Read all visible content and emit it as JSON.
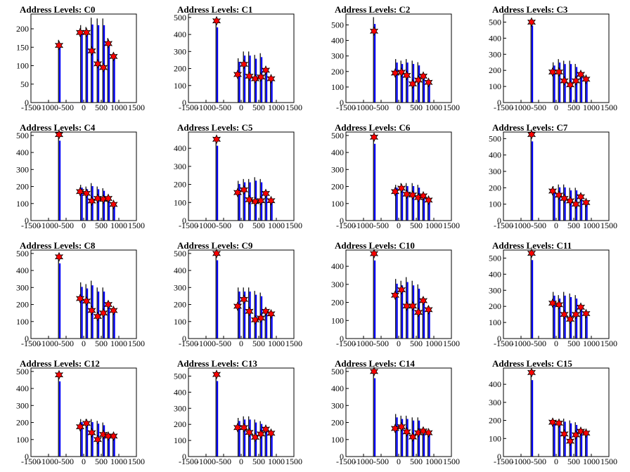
{
  "chart_data": [
    {
      "type": "bar",
      "title": "Address Levels: C0",
      "xlim": [
        -1500,
        1500
      ],
      "ylim": [
        0,
        240
      ],
      "yticks": [
        0,
        50,
        100,
        150,
        200
      ],
      "xticks": [
        -1500,
        -1000,
        -500,
        0,
        500,
        1000,
        1500
      ],
      "xticklabels": [
        "-1500",
        "-1000",
        "-500",
        "0",
        "500",
        "1000",
        "1500"
      ],
      "series": [
        {
          "x": [
            -700,
            -70,
            80,
            230,
            400,
            560,
            700,
            850
          ],
          "values": [
            170,
            210,
            205,
            230,
            228,
            228,
            175,
            135
          ]
        }
      ],
      "peaks": {
        "x": [
          -700,
          -100,
          80,
          230,
          400,
          560,
          700,
          850
        ],
        "values": [
          155,
          190,
          190,
          140,
          105,
          95,
          160,
          125
        ]
      }
    },
    {
      "type": "bar",
      "title": "Address Levels: C1",
      "xlim": [
        -1500,
        1500
      ],
      "ylim": [
        0,
        520
      ],
      "yticks": [
        0,
        100,
        200,
        300,
        400,
        500
      ],
      "xticks": [
        -1500,
        -1000,
        -500,
        0,
        500,
        1000,
        1500
      ],
      "xticklabels": [
        "-1500",
        "-1000",
        "-500",
        "0",
        "500",
        "1000",
        "1500"
      ],
      "series": [
        {
          "x": [
            -700,
            -70,
            80,
            230,
            400,
            560,
            700,
            850
          ],
          "values": [
            480,
            260,
            300,
            300,
            280,
            290,
            200,
            150
          ]
        }
      ],
      "peaks": {
        "x": [
          -700,
          -100,
          80,
          230,
          400,
          560,
          700,
          850
        ],
        "values": [
          480,
          165,
          225,
          155,
          140,
          150,
          190,
          140
        ]
      }
    },
    {
      "type": "bar",
      "title": "Address Levels: C2",
      "xlim": [
        -1500,
        1500
      ],
      "ylim": [
        0,
        570
      ],
      "yticks": [
        0,
        100,
        200,
        300,
        400,
        500
      ],
      "xticks": [
        -1500,
        -1000,
        -500,
        0,
        500,
        1000,
        1500
      ],
      "xticklabels": [
        "-1500",
        "-1000",
        "-500",
        "0",
        "500",
        "1000",
        "1500"
      ],
      "series": [
        {
          "x": [
            -700,
            -70,
            80,
            230,
            400,
            560,
            700,
            850
          ],
          "values": [
            550,
            280,
            270,
            280,
            270,
            260,
            180,
            130
          ]
        }
      ],
      "peaks": {
        "x": [
          -700,
          -100,
          80,
          230,
          400,
          560,
          700,
          850
        ],
        "values": [
          460,
          190,
          195,
          175,
          120,
          145,
          170,
          130
        ]
      }
    },
    {
      "type": "bar",
      "title": "Address Levels: C3",
      "xlim": [
        -1500,
        1500
      ],
      "ylim": [
        0,
        550
      ],
      "yticks": [
        0,
        100,
        200,
        300,
        400,
        500
      ],
      "xticks": [
        -1500,
        -1000,
        -500,
        0,
        500,
        1000,
        1500
      ],
      "xticklabels": [
        "-1500",
        "-1000",
        "-500",
        "0",
        "500",
        "1000",
        "1500"
      ],
      "series": [
        {
          "x": [
            -700,
            -70,
            80,
            230,
            400,
            560,
            700,
            850
          ],
          "values": [
            520,
            250,
            270,
            260,
            260,
            240,
            180,
            150
          ]
        }
      ],
      "peaks": {
        "x": [
          -700,
          -100,
          80,
          230,
          400,
          560,
          700,
          850
        ],
        "values": [
          500,
          190,
          190,
          135,
          110,
          135,
          175,
          145
        ]
      }
    },
    {
      "type": "bar",
      "title": "Address Levels: C4",
      "xlim": [
        -1500,
        1500
      ],
      "ylim": [
        0,
        520
      ],
      "yticks": [
        0,
        100,
        200,
        300,
        400,
        500
      ],
      "xticks": [
        -1500,
        -1000,
        -500,
        0,
        500,
        1000,
        1500
      ],
      "xticklabels": [
        "-1500",
        "-1000",
        "-500",
        "0",
        "500",
        "1000",
        "1500"
      ],
      "series": [
        {
          "x": [
            -700,
            -70,
            80,
            230,
            400,
            560,
            700,
            850
          ],
          "values": [
            510,
            210,
            200,
            220,
            200,
            190,
            140,
            100
          ]
        }
      ],
      "peaks": {
        "x": [
          -700,
          -100,
          80,
          230,
          400,
          560,
          700,
          850
        ],
        "values": [
          505,
          170,
          160,
          115,
          130,
          125,
          130,
          95
        ]
      }
    },
    {
      "type": "bar",
      "title": "Address Levels: C5",
      "xlim": [
        -1500,
        1500
      ],
      "ylim": [
        0,
        490
      ],
      "yticks": [
        0,
        100,
        200,
        300,
        400
      ],
      "xticks": [
        -1500,
        -1000,
        -500,
        0,
        500,
        1000,
        1500
      ],
      "xticklabels": [
        "-1500",
        "-1000",
        "-500",
        "0",
        "500",
        "1000",
        "1500"
      ],
      "series": [
        {
          "x": [
            -700,
            -70,
            80,
            230,
            400,
            560,
            700,
            850
          ],
          "values": [
            450,
            220,
            230,
            230,
            240,
            230,
            160,
            120
          ]
        }
      ],
      "peaks": {
        "x": [
          -700,
          -100,
          80,
          230,
          400,
          560,
          700,
          850
        ],
        "values": [
          450,
          155,
          170,
          115,
          105,
          110,
          150,
          110
        ]
      }
    },
    {
      "type": "bar",
      "title": "Address Levels: C6",
      "xlim": [
        -1500,
        1500
      ],
      "ylim": [
        0,
        520
      ],
      "yticks": [
        0,
        100,
        200,
        300,
        400,
        500
      ],
      "xticks": [
        -1500,
        -1000,
        -500,
        0,
        500,
        1000,
        1500
      ],
      "xticklabels": [
        "-1500",
        "-1000",
        "-500",
        "0",
        "500",
        "1000",
        "1500"
      ],
      "series": [
        {
          "x": [
            -700,
            -70,
            80,
            230,
            400,
            560,
            700,
            850
          ],
          "values": [
            490,
            210,
            220,
            220,
            220,
            210,
            160,
            120
          ]
        }
      ],
      "peaks": {
        "x": [
          -700,
          -100,
          80,
          230,
          400,
          560,
          700,
          850
        ],
        "values": [
          490,
          170,
          190,
          155,
          150,
          135,
          145,
          120
        ]
      }
    },
    {
      "type": "bar",
      "title": "Address Levels: C7",
      "xlim": [
        -1500,
        1500
      ],
      "ylim": [
        0,
        540
      ],
      "yticks": [
        0,
        100,
        200,
        300,
        400,
        500
      ],
      "xticks": [
        -1500,
        -1000,
        -500,
        0,
        500,
        1000,
        1500
      ],
      "xticklabels": [
        "-1500",
        "-1000",
        "-500",
        "0",
        "500",
        "1000",
        "1500"
      ],
      "series": [
        {
          "x": [
            -700,
            -70,
            80,
            230,
            400,
            560,
            700,
            850
          ],
          "values": [
            525,
            210,
            220,
            220,
            200,
            200,
            160,
            120
          ]
        }
      ],
      "peaks": {
        "x": [
          -700,
          -100,
          80,
          230,
          400,
          560,
          700,
          850
        ],
        "values": [
          525,
          180,
          155,
          135,
          120,
          100,
          145,
          110
        ]
      }
    },
    {
      "type": "bar",
      "title": "Address Levels: C8",
      "xlim": [
        -1500,
        1500
      ],
      "ylim": [
        0,
        520
      ],
      "yticks": [
        0,
        100,
        200,
        300,
        400,
        500
      ],
      "xticks": [
        -1500,
        -1000,
        -500,
        0,
        500,
        1000,
        1500
      ],
      "xticklabels": [
        "-1500",
        "-1000",
        "-500",
        "0",
        "500",
        "1000",
        "1500"
      ],
      "series": [
        {
          "x": [
            -700,
            -70,
            80,
            230,
            400,
            560,
            700,
            850
          ],
          "values": [
            480,
            330,
            320,
            340,
            300,
            300,
            220,
            180
          ]
        }
      ],
      "peaks": {
        "x": [
          -700,
          -100,
          80,
          230,
          400,
          560,
          700,
          850
        ],
        "values": [
          480,
          235,
          220,
          165,
          130,
          150,
          200,
          165
        ]
      }
    },
    {
      "type": "bar",
      "title": "Address Levels: C9",
      "xlim": [
        -1500,
        1500
      ],
      "ylim": [
        0,
        520
      ],
      "yticks": [
        0,
        100,
        200,
        300,
        400,
        500
      ],
      "xticks": [
        -1500,
        -1000,
        -500,
        0,
        500,
        1000,
        1500
      ],
      "xticklabels": [
        "-1500",
        "-1000",
        "-500",
        "0",
        "500",
        "1000",
        "1500"
      ],
      "series": [
        {
          "x": [
            -700,
            -70,
            80,
            230,
            400,
            560,
            700,
            850
          ],
          "values": [
            500,
            300,
            300,
            300,
            280,
            270,
            180,
            150
          ]
        }
      ],
      "peaks": {
        "x": [
          -700,
          -100,
          80,
          230,
          400,
          560,
          700,
          850
        ],
        "values": [
          500,
          190,
          230,
          160,
          110,
          120,
          160,
          145
        ]
      }
    },
    {
      "type": "bar",
      "title": "Address Levels: C10",
      "xlim": [
        -1500,
        1500
      ],
      "ylim": [
        0,
        490
      ],
      "yticks": [
        0,
        100,
        200,
        300,
        400
      ],
      "xticks": [
        -1500,
        -1000,
        -500,
        0,
        500,
        1000,
        1500
      ],
      "xticklabels": [
        "-1500",
        "-1000",
        "-500",
        "0",
        "500",
        "1000",
        "1500"
      ],
      "series": [
        {
          "x": [
            -700,
            -70,
            80,
            230,
            400,
            560,
            700,
            850
          ],
          "values": [
            470,
            330,
            320,
            340,
            320,
            300,
            230,
            180
          ]
        }
      ],
      "peaks": {
        "x": [
          -700,
          -100,
          80,
          230,
          400,
          560,
          700,
          850
        ],
        "values": [
          470,
          240,
          270,
          180,
          180,
          145,
          210,
          160
        ]
      }
    },
    {
      "type": "bar",
      "title": "Address Levels: C11",
      "xlim": [
        -1500,
        1500
      ],
      "ylim": [
        0,
        550
      ],
      "yticks": [
        0,
        100,
        200,
        300,
        400,
        500
      ],
      "xticks": [
        -1500,
        -1000,
        -500,
        0,
        500,
        1000,
        1500
      ],
      "xticklabels": [
        "-1500",
        "-1000",
        "-500",
        "0",
        "500",
        "1000",
        "1500"
      ],
      "series": [
        {
          "x": [
            -700,
            -70,
            80,
            230,
            400,
            560,
            700,
            850
          ],
          "values": [
            530,
            290,
            270,
            290,
            280,
            270,
            200,
            150
          ]
        }
      ],
      "peaks": {
        "x": [
          -700,
          -100,
          80,
          230,
          400,
          560,
          700,
          850
        ],
        "values": [
          530,
          220,
          210,
          150,
          120,
          150,
          195,
          155
        ]
      }
    },
    {
      "type": "bar",
      "title": "Address Levels: C12",
      "xlim": [
        -1500,
        1500
      ],
      "ylim": [
        0,
        520
      ],
      "yticks": [
        0,
        100,
        200,
        300,
        400,
        500
      ],
      "xticks": [
        -1500,
        -1000,
        -500,
        0,
        500,
        1000,
        1500
      ],
      "xticklabels": [
        "-1500",
        "-1000",
        "-500",
        "0",
        "500",
        "1000",
        "1500"
      ],
      "series": [
        {
          "x": [
            -700,
            -70,
            80,
            230,
            400,
            560,
            700,
            850
          ],
          "values": [
            480,
            220,
            220,
            220,
            210,
            200,
            140,
            120
          ]
        }
      ],
      "peaks": {
        "x": [
          -700,
          -100,
          80,
          230,
          400,
          560,
          700,
          850
        ],
        "values": [
          480,
          175,
          195,
          140,
          100,
          130,
          120,
          120
        ]
      }
    },
    {
      "type": "bar",
      "title": "Address Levels: C13",
      "xlim": [
        -1500,
        1500
      ],
      "ylim": [
        0,
        550
      ],
      "yticks": [
        0,
        100,
        200,
        300,
        400,
        500
      ],
      "xticks": [
        -1500,
        -1000,
        -500,
        0,
        500,
        1000,
        1500
      ],
      "xticklabels": [
        "-1500",
        "-1000",
        "-500",
        "0",
        "500",
        "1000",
        "1500"
      ],
      "series": [
        {
          "x": [
            -700,
            -70,
            80,
            230,
            400,
            560,
            700,
            850
          ],
          "values": [
            510,
            240,
            250,
            250,
            230,
            220,
            180,
            150
          ]
        }
      ],
      "peaks": {
        "x": [
          -700,
          -100,
          80,
          230,
          400,
          560,
          700,
          850
        ],
        "values": [
          510,
          180,
          180,
          150,
          120,
          140,
          170,
          145
        ]
      }
    },
    {
      "type": "bar",
      "title": "Address Levels: C14",
      "xlim": [
        -1500,
        1500
      ],
      "ylim": [
        0,
        520
      ],
      "yticks": [
        0,
        100,
        200,
        300,
        400,
        500
      ],
      "xticks": [
        -1500,
        -1000,
        -500,
        0,
        500,
        1000,
        1500
      ],
      "xticklabels": [
        "-1500",
        "-1000",
        "-500",
        "0",
        "500",
        "1000",
        "1500"
      ],
      "series": [
        {
          "x": [
            -700,
            -70,
            80,
            230,
            400,
            560,
            700,
            850
          ],
          "values": [
            500,
            250,
            240,
            240,
            230,
            230,
            170,
            140
          ]
        }
      ],
      "peaks": {
        "x": [
          -700,
          -100,
          80,
          230,
          400,
          560,
          700,
          850
        ],
        "values": [
          500,
          165,
          175,
          145,
          115,
          140,
          150,
          140
        ]
      }
    },
    {
      "type": "bar",
      "title": "Address Levels: C15",
      "xlim": [
        -1500,
        1500
      ],
      "ylim": [
        0,
        490
      ],
      "yticks": [
        0,
        100,
        200,
        300,
        400
      ],
      "xticks": [
        -1500,
        -1000,
        -500,
        0,
        500,
        1000,
        1500
      ],
      "xticklabels": [
        "-1500",
        "-1000",
        "-500",
        "0",
        "500",
        "1000",
        "1500"
      ],
      "series": [
        {
          "x": [
            -700,
            -70,
            80,
            230,
            400,
            560,
            700,
            850
          ],
          "values": [
            460,
            210,
            200,
            210,
            200,
            190,
            150,
            130
          ]
        }
      ],
      "peaks": {
        "x": [
          -700,
          -100,
          80,
          230,
          400,
          560,
          700,
          850
        ],
        "values": [
          465,
          190,
          185,
          125,
          85,
          120,
          140,
          130
        ]
      }
    }
  ],
  "colors": {
    "bars": "#0000ff",
    "peak_marker": "#ff0000",
    "peak_marker_edge": "#000000",
    "axes": "#000000"
  }
}
